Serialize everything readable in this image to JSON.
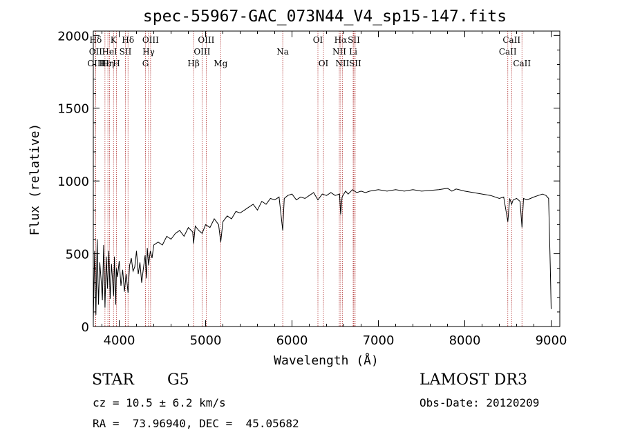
{
  "chart_data": {
    "type": "line",
    "title": "spec-55967-GAC_073N44_V4_sp15-147.fits",
    "xlabel": "Wavelength (Å)",
    "ylabel": "Flux (relative)",
    "xlim": [
      3700,
      9100
    ],
    "ylim": [
      0,
      2030
    ],
    "xticks": [
      4000,
      5000,
      6000,
      7000,
      8000,
      9000
    ],
    "yticks": [
      0,
      500,
      1000,
      1500,
      2000
    ],
    "series": [
      {
        "name": "spectrum",
        "x": [
          3700,
          3715,
          3730,
          3745,
          3760,
          3775,
          3790,
          3805,
          3820,
          3835,
          3850,
          3865,
          3880,
          3895,
          3910,
          3925,
          3935,
          3945,
          3960,
          3968,
          3980,
          4000,
          4020,
          4040,
          4060,
          4080,
          4102,
          4120,
          4140,
          4160,
          4180,
          4200,
          4220,
          4240,
          4260,
          4280,
          4300,
          4315,
          4325,
          4340,
          4360,
          4380,
          4400,
          4450,
          4500,
          4550,
          4600,
          4650,
          4700,
          4750,
          4800,
          4850,
          4861,
          4880,
          4920,
          4960,
          5000,
          5050,
          5100,
          5150,
          5175,
          5200,
          5250,
          5300,
          5350,
          5400,
          5450,
          5500,
          5550,
          5600,
          5650,
          5700,
          5750,
          5800,
          5850,
          5893,
          5910,
          5950,
          6000,
          6050,
          6100,
          6150,
          6200,
          6250,
          6300,
          6350,
          6400,
          6450,
          6500,
          6550,
          6563,
          6580,
          6620,
          6650,
          6700,
          6750,
          6800,
          6850,
          6900,
          6950,
          7000,
          7100,
          7200,
          7300,
          7400,
          7500,
          7600,
          7700,
          7800,
          7850,
          7900,
          8000,
          8100,
          8200,
          8300,
          8400,
          8450,
          8498,
          8520,
          8542,
          8560,
          8600,
          8640,
          8662,
          8680,
          8720,
          8760,
          8800,
          8850,
          8900,
          8940,
          8970,
          8990,
          9000
        ],
        "y": [
          40,
          520,
          80,
          600,
          150,
          440,
          320,
          180,
          560,
          130,
          480,
          260,
          520,
          190,
          430,
          300,
          210,
          480,
          150,
          400,
          340,
          450,
          280,
          390,
          240,
          360,
          230,
          420,
          470,
          380,
          410,
          520,
          360,
          440,
          300,
          400,
          490,
          330,
          540,
          420,
          520,
          470,
          560,
          580,
          560,
          620,
          600,
          640,
          660,
          620,
          680,
          650,
          570,
          690,
          660,
          640,
          700,
          680,
          740,
          700,
          580,
          720,
          760,
          740,
          790,
          780,
          800,
          820,
          840,
          800,
          860,
          840,
          880,
          870,
          890,
          660,
          880,
          900,
          910,
          870,
          890,
          880,
          900,
          920,
          870,
          910,
          900,
          920,
          900,
          910,
          770,
          890,
          930,
          910,
          940,
          920,
          930,
          920,
          930,
          935,
          940,
          930,
          940,
          930,
          940,
          930,
          935,
          940,
          950,
          930,
          945,
          930,
          920,
          910,
          900,
          880,
          890,
          720,
          880,
          840,
          870,
          880,
          860,
          680,
          880,
          870,
          880,
          890,
          900,
          910,
          900,
          880,
          400,
          120
        ]
      }
    ],
    "line_markers": [
      {
        "label": "Hδ",
        "wavelength": 3727,
        "row": 0
      },
      {
        "label": "OII",
        "wavelength": 3727,
        "row": 1
      },
      {
        "label": "OIII",
        "wavelength": 3727,
        "row": 2
      },
      {
        "label": "Hε",
        "wavelength": 3835,
        "row": 2
      },
      {
        "label": "K",
        "wavelength": 3934,
        "row": 0
      },
      {
        "label": "HeI",
        "wavelength": 3889,
        "row": 1
      },
      {
        "label": "Hη",
        "wavelength": 3869,
        "row": 2
      },
      {
        "label": "H",
        "wavelength": 3968,
        "row": 2
      },
      {
        "label": "SII",
        "wavelength": 4072,
        "row": 1
      },
      {
        "label": "Hδ",
        "wavelength": 4102,
        "row": 0
      },
      {
        "label": "OIII",
        "wavelength": 4363,
        "row": 0
      },
      {
        "label": "Hγ",
        "wavelength": 4340,
        "row": 1
      },
      {
        "label": "G",
        "wavelength": 4304,
        "row": 2
      },
      {
        "label": "Hβ",
        "wavelength": 4861,
        "row": 2
      },
      {
        "label": "OIII",
        "wavelength": 5007,
        "row": 0
      },
      {
        "label": "OIII",
        "wavelength": 4959,
        "row": 1
      },
      {
        "label": "Mg",
        "wavelength": 5175,
        "row": 2
      },
      {
        "label": "Na",
        "wavelength": 5893,
        "row": 1
      },
      {
        "label": "OI",
        "wavelength": 6300,
        "row": 0
      },
      {
        "label": "OI",
        "wavelength": 6364,
        "row": 2
      },
      {
        "label": "Hα",
        "wavelength": 6563,
        "row": 0
      },
      {
        "label": "NII",
        "wavelength": 6548,
        "row": 1
      },
      {
        "label": "NII",
        "wavelength": 6583,
        "row": 2
      },
      {
        "label": "SII",
        "wavelength": 6716,
        "row": 0
      },
      {
        "label": "Li",
        "wavelength": 6708,
        "row": 1
      },
      {
        "label": "SII",
        "wavelength": 6731,
        "row": 2
      },
      {
        "label": "CaII",
        "wavelength": 8542,
        "row": 0
      },
      {
        "label": "CaII",
        "wavelength": 8498,
        "row": 1
      },
      {
        "label": "CaII",
        "wavelength": 8662,
        "row": 2
      }
    ]
  },
  "info": {
    "class": "STAR",
    "subclass": "G5",
    "survey": "LAMOST DR3",
    "redshift": "cz = 10.5 ± 6.2 km/s",
    "obs_date": "Obs-Date: 20120209",
    "coords": "RA =  73.96940, DEC =  45.05682"
  }
}
